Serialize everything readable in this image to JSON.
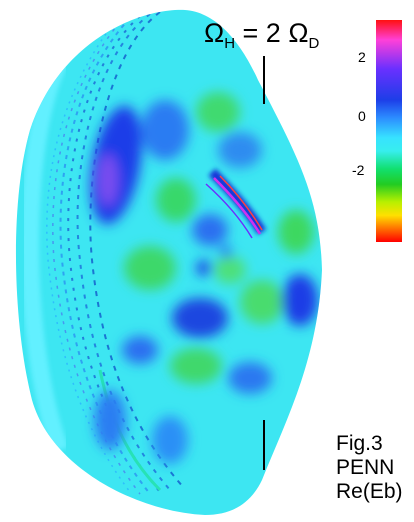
{
  "resonance_label": {
    "omega": "Ω",
    "sub_h": "H",
    "equals_two": " = 2 ",
    "sub_d": "D"
  },
  "colorbar": {
    "ticks": [
      "2",
      "0",
      "-2"
    ],
    "scale_colors_top_to_bottom": [
      "#ff1010",
      "#ff40d8",
      "#6a30ff",
      "#1d3ee8",
      "#2c8cff",
      "#37e2ff",
      "#11e070",
      "#22cc22",
      "#b8f000",
      "#ffe000",
      "#ff7000",
      "#ff0000"
    ]
  },
  "caption": {
    "line1": "Fig.3",
    "line2": "PENN",
    "line3": "Re(Eb)"
  },
  "colors": {
    "background_field": "#37e2ff",
    "positive_lobes": "#1d3ee8",
    "negative_lobes": "#3fd86a",
    "resonance_line": "#000000"
  }
}
